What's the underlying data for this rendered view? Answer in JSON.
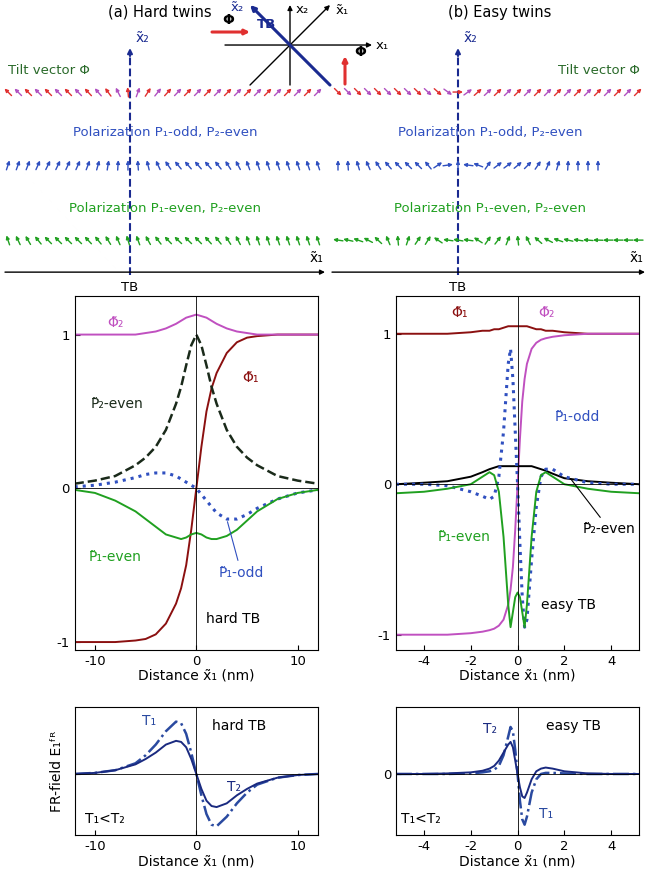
{
  "diagram": {
    "panels": [
      {
        "title": "(a) Hard twins",
        "axis_vertical": "x̃₂",
        "axis_horizontal": "x̃₁",
        "boundary": "TB",
        "rows": [
          "Tilt vector Φ",
          "Polarization P₁-odd, P₂-even",
          "Polarization P₁-even, P₂-even"
        ]
      },
      {
        "title": "(b) Easy twins",
        "axis_vertical": "x̃₂",
        "axis_horizontal": "x̃₁",
        "boundary": "TB",
        "rows": [
          "Tilt vector Φ",
          "Polarization P₁-odd, P₂-even",
          "Polarization P₁-even, P₂-even"
        ]
      }
    ],
    "inset": {
      "x1": "x₁",
      "x2": "x₂",
      "x1_rotated": "x̃₁",
      "x2_rotated": "x̃₂",
      "boundary": "TB",
      "vector": "Φ"
    }
  },
  "chart_data": [
    {
      "type": "line",
      "xlabel": "Distance x̃₁ (nm)",
      "annotations": [
        "hard TB"
      ],
      "x": [
        -12,
        -10,
        -8,
        -6,
        -5,
        -4,
        -3,
        -2,
        -1.5,
        -1,
        -0.5,
        0,
        0.5,
        1,
        1.5,
        2,
        3,
        4,
        5,
        6,
        8,
        10,
        12
      ],
      "xlim": [
        -12,
        12
      ],
      "xticks": [
        -10,
        0,
        10
      ],
      "ylim": [
        -1.05,
        1.25
      ],
      "yticks": [
        -1,
        0,
        1
      ],
      "series": [
        {
          "name": "Φ̃₁",
          "color": "#8b1010",
          "line_style": "solid",
          "values": [
            -1,
            -1,
            -1,
            -0.99,
            -0.98,
            -0.95,
            -0.88,
            -0.75,
            -0.65,
            -0.5,
            -0.27,
            0,
            0.27,
            0.5,
            0.65,
            0.75,
            0.88,
            0.95,
            0.98,
            0.99,
            1,
            1,
            1
          ]
        },
        {
          "name": "Φ̃₂",
          "color": "#c050c0",
          "line_style": "solid",
          "values": [
            1,
            1,
            1,
            1,
            1.01,
            1.02,
            1.04,
            1.07,
            1.09,
            1.11,
            1.12,
            1.13,
            1.12,
            1.11,
            1.09,
            1.07,
            1.04,
            1.02,
            1.01,
            1,
            1,
            1,
            1
          ]
        },
        {
          "name": "P̃₂-even",
          "color": "#1a2a1a",
          "line_style": "dashed",
          "values": [
            0.03,
            0.05,
            0.08,
            0.15,
            0.2,
            0.27,
            0.38,
            0.55,
            0.66,
            0.8,
            0.93,
            1.0,
            0.93,
            0.8,
            0.66,
            0.55,
            0.38,
            0.27,
            0.2,
            0.15,
            0.08,
            0.05,
            0.03
          ]
        },
        {
          "name": "P̃₁-odd",
          "color": "#3050c0",
          "line_style": "dotted",
          "values": [
            0.01,
            0.02,
            0.04,
            0.07,
            0.09,
            0.1,
            0.1,
            0.08,
            0.06,
            0.04,
            0.02,
            0,
            -0.04,
            -0.08,
            -0.12,
            -0.16,
            -0.2,
            -0.2,
            -0.17,
            -0.13,
            -0.07,
            -0.03,
            -0.01
          ]
        },
        {
          "name": "P̃₁-even",
          "color": "#20a020",
          "line_style": "solid",
          "values": [
            -0.01,
            -0.03,
            -0.08,
            -0.15,
            -0.2,
            -0.25,
            -0.3,
            -0.32,
            -0.33,
            -0.32,
            -0.3,
            -0.29,
            -0.3,
            -0.32,
            -0.33,
            -0.33,
            -0.31,
            -0.27,
            -0.21,
            -0.15,
            -0.07,
            -0.03,
            -0.01
          ]
        }
      ]
    },
    {
      "type": "line",
      "xlabel": "Distance x̃₁ (nm)",
      "annotations": [
        "easy TB"
      ],
      "x": [
        -5.2,
        -4,
        -3,
        -2,
        -1.5,
        -1.2,
        -1,
        -0.8,
        -0.6,
        -0.4,
        -0.3,
        -0.2,
        -0.1,
        0,
        0.1,
        0.2,
        0.3,
        0.4,
        0.6,
        0.8,
        1,
        1.2,
        1.5,
        2,
        3,
        4,
        5.2
      ],
      "xlim": [
        -5.2,
        5.2
      ],
      "xticks": [
        -4,
        -2,
        0,
        2,
        4
      ],
      "ylim": [
        -1.1,
        1.25
      ],
      "yticks": [
        -1,
        0,
        1
      ],
      "series": [
        {
          "name": "Φ̃₁",
          "color": "#8b1010",
          "line_style": "solid",
          "values": [
            1,
            1,
            1,
            1.01,
            1.02,
            1.02,
            1.03,
            1.03,
            1.04,
            1.05,
            1.05,
            1.05,
            1.05,
            1.05,
            1.05,
            1.05,
            1.05,
            1.05,
            1.04,
            1.03,
            1.03,
            1.02,
            1.02,
            1.01,
            1,
            1,
            1
          ]
        },
        {
          "name": "Φ̃₂",
          "color": "#c050c0",
          "line_style": "solid",
          "values": [
            -1,
            -1,
            -1,
            -0.99,
            -0.98,
            -0.97,
            -0.96,
            -0.94,
            -0.9,
            -0.8,
            -0.7,
            -0.55,
            -0.3,
            0,
            0.3,
            0.55,
            0.7,
            0.8,
            0.9,
            0.94,
            0.96,
            0.97,
            0.98,
            0.99,
            1,
            1,
            1
          ]
        },
        {
          "name": "P̃₂-even",
          "color": "#000000",
          "line_style": "solid",
          "values": [
            0,
            0.01,
            0.02,
            0.05,
            0.08,
            0.1,
            0.11,
            0.12,
            0.12,
            0.12,
            0.12,
            0.12,
            0.12,
            0.12,
            0.12,
            0.12,
            0.12,
            0.12,
            0.12,
            0.11,
            0.1,
            0.09,
            0.07,
            0.04,
            0.02,
            0.01,
            0
          ]
        },
        {
          "name": "P̃₁-odd",
          "color": "#3050c0",
          "line_style": "dotted",
          "values": [
            0,
            0,
            -0.01,
            -0.05,
            -0.08,
            -0.1,
            -0.08,
            0.05,
            0.35,
            0.8,
            0.9,
            0.7,
            0.35,
            0,
            -0.4,
            -0.75,
            -0.95,
            -0.9,
            -0.5,
            -0.15,
            0.05,
            0.1,
            0.1,
            0.05,
            0.01,
            0,
            0
          ]
        },
        {
          "name": "P̃₁-even",
          "color": "#20a020",
          "line_style": "solid",
          "values": [
            -0.06,
            -0.05,
            -0.03,
            0,
            0.05,
            0.08,
            0.06,
            -0.05,
            -0.35,
            -0.8,
            -0.95,
            -0.85,
            -0.75,
            -0.72,
            -0.75,
            -0.85,
            -0.95,
            -0.8,
            -0.35,
            -0.05,
            0.06,
            0.08,
            0.05,
            0,
            -0.03,
            -0.05,
            -0.06
          ]
        }
      ]
    },
    {
      "type": "line",
      "xlabel": "Distance x̃₁ (nm)",
      "ylabel": "FR-field E₁ᶠᴿ",
      "annotations": [
        "T₁<T₂",
        "hard TB"
      ],
      "x": [
        -12,
        -10,
        -8,
        -6,
        -5,
        -4,
        -3,
        -2,
        -1.5,
        -1,
        -0.5,
        0,
        0.5,
        1,
        1.5,
        2,
        3,
        4,
        5,
        6,
        8,
        10,
        12
      ],
      "xlim": [
        -12,
        12
      ],
      "xticks": [
        -10,
        0,
        10
      ],
      "ylim": [
        -1.15,
        1.25
      ],
      "yticks": [
        0
      ],
      "tick_labels": "x",
      "series": [
        {
          "name": "T₁",
          "color": "#2a4aa0",
          "line_style": "dashdot",
          "values": [
            0,
            0.02,
            0.07,
            0.2,
            0.35,
            0.55,
            0.8,
            0.98,
            0.95,
            0.75,
            0.4,
            0,
            -0.4,
            -0.75,
            -0.95,
            -0.98,
            -0.8,
            -0.55,
            -0.35,
            -0.2,
            -0.07,
            -0.02,
            0
          ]
        },
        {
          "name": "T₂",
          "color": "#1a2a80",
          "line_style": "solid",
          "values": [
            0,
            0.02,
            0.07,
            0.18,
            0.28,
            0.4,
            0.55,
            0.62,
            0.6,
            0.5,
            0.28,
            0,
            -0.28,
            -0.5,
            -0.6,
            -0.62,
            -0.55,
            -0.4,
            -0.28,
            -0.18,
            -0.07,
            -0.02,
            0
          ]
        }
      ]
    },
    {
      "type": "line",
      "xlabel": "Distance x̃₁ (nm)",
      "annotations": [
        "T₁<T₂",
        "easy TB"
      ],
      "x": [
        -5.2,
        -4,
        -3,
        -2,
        -1.5,
        -1.2,
        -1,
        -0.8,
        -0.6,
        -0.4,
        -0.3,
        -0.2,
        -0.1,
        0,
        0.1,
        0.2,
        0.3,
        0.4,
        0.6,
        0.8,
        1,
        1.2,
        1.5,
        2,
        3,
        4,
        5.2
      ],
      "xlim": [
        -5.2,
        5.2
      ],
      "xticks": [
        -4,
        -2,
        0,
        2,
        4
      ],
      "ylim": [
        -1.15,
        1.25
      ],
      "yticks": [
        0
      ],
      "series": [
        {
          "name": "T₁",
          "color": "#2a4aa0",
          "line_style": "dashdot",
          "values": [
            0,
            0,
            0,
            0.01,
            0.03,
            0.05,
            0.08,
            0.15,
            0.35,
            0.7,
            0.88,
            0.8,
            0.45,
            0,
            -0.5,
            -0.85,
            -0.95,
            -0.8,
            -0.35,
            -0.1,
            0,
            0.02,
            0.02,
            0.01,
            0,
            0,
            0
          ]
        },
        {
          "name": "T₂",
          "color": "#1a2a80",
          "line_style": "solid",
          "values": [
            0,
            0,
            0.01,
            0.03,
            0.06,
            0.1,
            0.15,
            0.25,
            0.4,
            0.55,
            0.6,
            0.5,
            0.25,
            0,
            -0.25,
            -0.42,
            -0.45,
            -0.35,
            -0.1,
            0.05,
            0.1,
            0.12,
            0.1,
            0.05,
            0.01,
            0,
            0
          ]
        }
      ]
    }
  ]
}
